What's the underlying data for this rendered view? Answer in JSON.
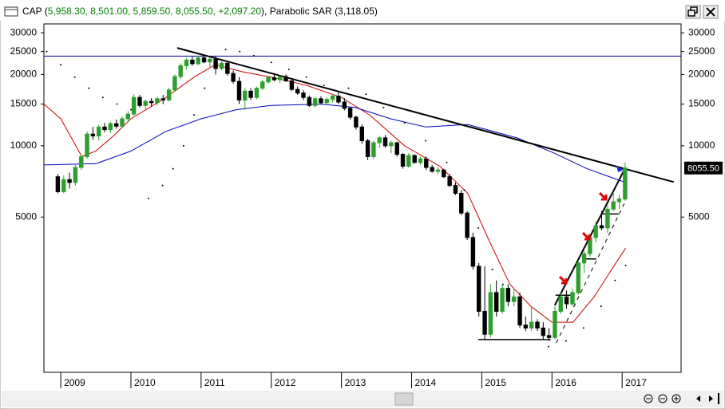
{
  "header": {
    "prefix": "CAP (",
    "ohlc": "5,958.30, 8,501.00, 5,859.50, 8,055.50, +2,097.20",
    "suffix": "), Parabolic SAR (3,118.05)"
  },
  "chart_data": {
    "type": "candlestick",
    "log_scale": true,
    "up_color": "#2e9e2e",
    "down_color": "#000000",
    "xlim": [
      2008.76,
      2017.84
    ],
    "xticks": [
      2009,
      2010,
      2011,
      2012,
      2013,
      2014,
      2015,
      2016,
      2017
    ],
    "ylim": [
      1105,
      32700
    ],
    "yticks": [
      5000,
      10000,
      15000,
      20000,
      25000,
      30000
    ],
    "last_price": {
      "value": 8055.5,
      "label": "8055.50"
    },
    "x": [
      2008.958,
      2009.042,
      2009.125,
      2009.208,
      2009.292,
      2009.375,
      2009.458,
      2009.542,
      2009.625,
      2009.708,
      2009.792,
      2009.875,
      2009.958,
      2010.042,
      2010.125,
      2010.208,
      2010.292,
      2010.375,
      2010.458,
      2010.542,
      2010.625,
      2010.708,
      2010.792,
      2010.875,
      2010.958,
      2011.042,
      2011.125,
      2011.208,
      2011.292,
      2011.375,
      2011.458,
      2011.542,
      2011.625,
      2011.708,
      2011.792,
      2011.875,
      2011.958,
      2012.042,
      2012.125,
      2012.208,
      2012.292,
      2012.375,
      2012.458,
      2012.542,
      2012.625,
      2012.708,
      2012.792,
      2012.875,
      2012.958,
      2013.042,
      2013.125,
      2013.208,
      2013.292,
      2013.375,
      2013.458,
      2013.542,
      2013.625,
      2013.708,
      2013.792,
      2013.875,
      2013.958,
      2014.042,
      2014.125,
      2014.208,
      2014.292,
      2014.375,
      2014.458,
      2014.542,
      2014.625,
      2014.708,
      2014.792,
      2014.875,
      2014.958,
      2015.042,
      2015.125,
      2015.208,
      2015.292,
      2015.375,
      2015.458,
      2015.542,
      2015.625,
      2015.708,
      2015.792,
      2015.875,
      2015.958,
      2016.042,
      2016.125,
      2016.208,
      2016.292,
      2016.375,
      2016.458,
      2016.542,
      2016.625,
      2016.708,
      2016.792,
      2016.875,
      2016.958,
      2017.042
    ],
    "open": [
      7400,
      6400,
      7200,
      7000,
      8100,
      9000,
      11200,
      11000,
      12000,
      11700,
      12400,
      12100,
      13000,
      13600,
      16000,
      14800,
      15400,
      15200,
      15800,
      15600,
      17200,
      19600,
      21800,
      23000,
      22200,
      23500,
      22600,
      23200,
      21200,
      22300,
      20200,
      18700,
      15600,
      17000,
      16000,
      17500,
      18600,
      19400,
      19000,
      19600,
      18800,
      17300,
      16700,
      16000,
      14800,
      15800,
      15200,
      15700,
      16200,
      15300,
      14400,
      13200,
      12000,
      10500,
      9000,
      10300,
      10800,
      10000,
      10300,
      9200,
      8200,
      9100,
      8500,
      8800,
      8100,
      7800,
      7900,
      7400,
      6800,
      6300,
      5200,
      4100,
      3100,
      2000,
      1600,
      2400,
      2000,
      2500,
      2200,
      2300,
      1750,
      1700,
      1800,
      1700,
      1580,
      1550,
      2000,
      2300,
      2150,
      2400,
      3200,
      3500,
      4100,
      4600,
      4500,
      5400,
      5800,
      5958.3
    ],
    "high": [
      7600,
      7500,
      7700,
      8300,
      9200,
      11500,
      12000,
      12300,
      12500,
      12600,
      12900,
      13300,
      14000,
      16500,
      16400,
      15700,
      15900,
      16100,
      16400,
      17600,
      20000,
      22300,
      23500,
      23800,
      24000,
      24200,
      23700,
      24000,
      22800,
      22600,
      20800,
      19500,
      17500,
      17500,
      17800,
      19000,
      19800,
      20300,
      19900,
      20000,
      19100,
      17800,
      17200,
      16300,
      16100,
      16200,
      16000,
      16500,
      16800,
      15900,
      14600,
      13400,
      12300,
      10700,
      10500,
      11000,
      11100,
      10500,
      10400,
      9300,
      9300,
      9200,
      9000,
      9000,
      8300,
      8100,
      8000,
      7600,
      7000,
      6500,
      5300,
      4300,
      3200,
      3100,
      2600,
      2700,
      2600,
      2600,
      2500,
      2400,
      1900,
      2100,
      1850,
      1800,
      1700,
      2100,
      2400,
      2450,
      2500,
      3300,
      3600,
      4200,
      4800,
      5300,
      5600,
      6400,
      6200,
      8501
    ],
    "low": [
      6300,
      6300,
      6600,
      6800,
      7900,
      8800,
      10600,
      10500,
      11400,
      11300,
      11800,
      11900,
      12600,
      13400,
      14500,
      14300,
      14600,
      14800,
      15000,
      15400,
      16900,
      19100,
      21000,
      21800,
      21900,
      22300,
      21500,
      20000,
      20800,
      19800,
      18300,
      15000,
      14200,
      15600,
      15700,
      17200,
      18300,
      18700,
      18400,
      18600,
      17000,
      16400,
      15600,
      14600,
      14500,
      15000,
      14900,
      15200,
      15000,
      14100,
      12900,
      11700,
      10200,
      8700,
      8800,
      9800,
      9800,
      9300,
      9000,
      8000,
      8100,
      8400,
      8300,
      7900,
      7700,
      7600,
      7300,
      6700,
      6200,
      5100,
      4000,
      3000,
      1900,
      1520,
      1550,
      1900,
      1950,
      2100,
      2100,
      1700,
      1650,
      1650,
      1650,
      1520,
      1500,
      1520,
      1950,
      2050,
      2100,
      2350,
      2900,
      3400,
      3900,
      4400,
      4300,
      5300,
      5400,
      5859.5
    ],
    "close": [
      6400,
      7200,
      7000,
      8100,
      9000,
      11200,
      11000,
      12000,
      11700,
      12400,
      12100,
      13000,
      13600,
      16000,
      14800,
      15400,
      15200,
      15800,
      15600,
      17200,
      19600,
      21800,
      23000,
      22200,
      23500,
      22600,
      23200,
      21200,
      22300,
      20200,
      18700,
      15600,
      17000,
      16000,
      17500,
      18600,
      19400,
      19000,
      19600,
      18800,
      17300,
      16700,
      16000,
      14800,
      15800,
      15200,
      15700,
      16200,
      15300,
      14400,
      13200,
      12000,
      10500,
      9000,
      10300,
      10800,
      10000,
      10300,
      9200,
      8200,
      9100,
      8500,
      8800,
      8100,
      7800,
      7900,
      7400,
      6800,
      6300,
      5200,
      4100,
      3100,
      2000,
      1600,
      2400,
      2000,
      2500,
      2200,
      2300,
      1750,
      1700,
      1800,
      1700,
      1580,
      1550,
      2000,
      2300,
      2150,
      2400,
      3200,
      3500,
      4100,
      4600,
      4500,
      5400,
      5800,
      5958.3,
      8055.5
    ],
    "overlays": [
      {
        "color": "#d00000",
        "width": 1,
        "x": [
          2008.76,
          2009.0,
          2009.3,
          2009.5,
          2009.75,
          2010.0,
          2010.5,
          2010.9,
          2011.2,
          2011.6,
          2012.0,
          2012.5,
          2013.0,
          2013.4,
          2013.9,
          2014.4,
          2014.8,
          2015.1,
          2015.4,
          2015.7,
          2016.0,
          2016.3,
          2016.6,
          2016.85,
          2017.05
        ],
        "values": [
          15000,
          13000,
          9000,
          9500,
          11000,
          13000,
          16000,
          19500,
          22000,
          20500,
          19500,
          18000,
          16000,
          13500,
          10000,
          8200,
          6300,
          4000,
          2600,
          2100,
          1800,
          1800,
          2300,
          3000,
          3700
        ]
      },
      {
        "color": "#0000c0",
        "width": 1,
        "x": [
          2008.76,
          2009.5,
          2010.0,
          2010.5,
          2011.0,
          2011.5,
          2012.0,
          2012.7,
          2013.2,
          2013.7,
          2014.2,
          2014.8,
          2015.5,
          2016.0,
          2016.5,
          2017.05
        ],
        "values": [
          8300,
          8400,
          9500,
          11500,
          13000,
          14200,
          14800,
          15000,
          14500,
          13000,
          12000,
          12300,
          10800,
          9400,
          8000,
          7000
        ]
      },
      {
        "color": "#0000a0",
        "width": 1,
        "x": [
          2008.76,
          2017.84
        ],
        "values": [
          23900,
          23900
        ]
      },
      {
        "color": "#000000",
        "width": 2,
        "x": [
          2010.66,
          2017.735
        ],
        "values": [
          25900,
          7030
        ]
      },
      {
        "color": "#000000",
        "width": 2,
        "x": [
          2016.04,
          2017.03
        ],
        "values": [
          2120,
          7900
        ]
      },
      {
        "color": "#000000",
        "width": 1.5,
        "x": [
          2014.95,
          2015.98
        ],
        "values": [
          1520,
          1520
        ]
      },
      {
        "color": "#000000",
        "width": 1.5,
        "x": [
          2016.05,
          2016.3
        ],
        "values": [
          2340,
          2340
        ]
      },
      {
        "color": "#000000",
        "width": 1.5,
        "x": [
          2016.43,
          2016.63
        ],
        "values": [
          3330,
          3330
        ]
      },
      {
        "color": "#000000",
        "width": 1.5,
        "x": [
          2016.7,
          2016.95
        ],
        "values": [
          5150,
          5150
        ]
      },
      {
        "color": "#000000",
        "width": 1,
        "dashed": true,
        "x": [
          2016.06,
          2017.03
        ],
        "values": [
          1470,
          5700
        ]
      }
    ],
    "sar": {
      "color": "#000000",
      "x": [
        2008.8,
        2009.0,
        2009.2,
        2009.4,
        2009.6,
        2009.8,
        2010.0,
        null,
        2010.25,
        2010.45,
        2010.6,
        2010.75,
        2010.9,
        2011.05,
        2011.2,
        null,
        2011.35,
        2011.55,
        2011.75,
        2012.0,
        2012.25,
        2012.5,
        2012.75,
        2013.0,
        null,
        2013.1,
        2013.35,
        2013.6,
        2013.9,
        2014.2,
        2014.5,
        2014.75,
        2014.95,
        2015.15,
        2015.3,
        null,
        2015.95,
        2016.2,
        2016.45,
        2016.7,
        2016.9,
        2017.05
      ],
      "values": [
        25000,
        22000,
        19500,
        17500,
        16000,
        15000,
        14200,
        null,
        6000,
        6800,
        8000,
        10000,
        13500,
        17500,
        21500,
        null,
        25500,
        25000,
        24000,
        22500,
        21000,
        19500,
        18000,
        16800,
        null,
        17500,
        16500,
        14500,
        12500,
        10500,
        8500,
        6500,
        4500,
        3000,
        2600,
        null,
        1420,
        1500,
        1700,
        2100,
        2700,
        3118.05
      ]
    }
  }
}
